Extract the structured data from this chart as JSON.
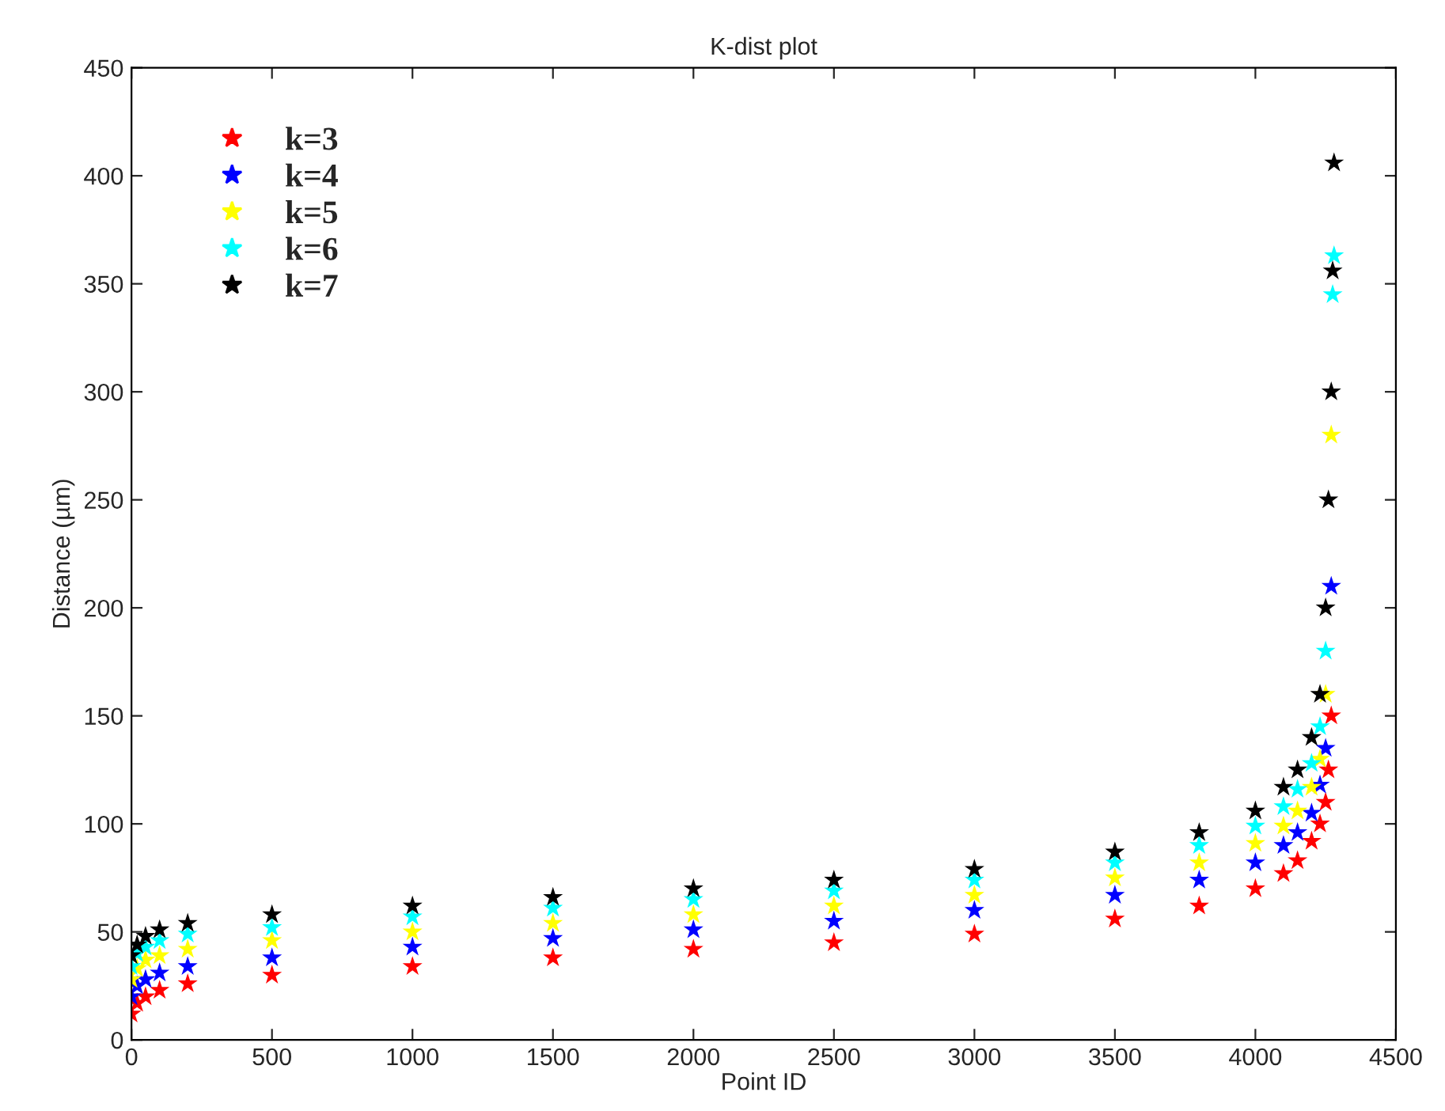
{
  "chart_data": {
    "type": "scatter",
    "title": "K-dist plot",
    "xlabel": "Point ID",
    "ylabel": "Distance (µm)",
    "marker": "star",
    "legend": "top left",
    "grid": false,
    "xlim": [
      0,
      4500
    ],
    "ylim": [
      0,
      450
    ],
    "xticks": [
      0,
      500,
      1000,
      1500,
      2000,
      2500,
      3000,
      3500,
      4000,
      4500
    ],
    "yticks": [
      0,
      50,
      100,
      150,
      200,
      250,
      300,
      350,
      400,
      450
    ],
    "series": [
      {
        "name": "k=3",
        "color": "#ff0000",
        "x": [
          0,
          20,
          50,
          100,
          200,
          500,
          1000,
          1500,
          2000,
          2500,
          3000,
          3500,
          3800,
          4000,
          4100,
          4150,
          4200,
          4230,
          4250,
          4260,
          4270
        ],
        "values": [
          12,
          17,
          20,
          23,
          26,
          30,
          34,
          38,
          42,
          45,
          49,
          56,
          62,
          70,
          77,
          83,
          92,
          100,
          110,
          125,
          150
        ]
      },
      {
        "name": "k=4",
        "color": "#0000ff",
        "x": [
          0,
          20,
          50,
          100,
          200,
          500,
          1000,
          1500,
          2000,
          2500,
          3000,
          3500,
          3800,
          4000,
          4100,
          4150,
          4200,
          4230,
          4250,
          4260,
          4270
        ],
        "values": [
          20,
          25,
          28,
          31,
          34,
          38,
          43,
          47,
          51,
          55,
          60,
          67,
          74,
          82,
          90,
          96,
          105,
          118,
          135,
          null,
          210
        ]
      },
      {
        "name": "k=5",
        "color": "#ffff00",
        "x": [
          0,
          20,
          50,
          100,
          200,
          500,
          1000,
          1500,
          2000,
          2500,
          3000,
          3500,
          3800,
          4000,
          4100,
          4150,
          4200,
          4230,
          4250,
          4260,
          4270
        ],
        "values": [
          28,
          33,
          37,
          39,
          42,
          46,
          50,
          54,
          58,
          62,
          67,
          75,
          82,
          91,
          99,
          106,
          117,
          130,
          160,
          null,
          280
        ]
      },
      {
        "name": "k=6",
        "color": "#00ffff",
        "x": [
          0,
          20,
          50,
          100,
          200,
          500,
          1000,
          1500,
          2000,
          2500,
          3000,
          3500,
          3800,
          4000,
          4100,
          4150,
          4200,
          4230,
          4250,
          4260,
          4270,
          4275,
          4280
        ],
        "values": [
          34,
          40,
          43,
          46,
          49,
          52,
          57,
          61,
          65,
          69,
          74,
          82,
          90,
          99,
          108,
          116,
          128,
          145,
          180,
          null,
          null,
          345,
          363
        ]
      },
      {
        "name": "k=7",
        "color": "#000000",
        "x": [
          0,
          20,
          50,
          100,
          200,
          500,
          1000,
          1500,
          2000,
          2500,
          3000,
          3500,
          3800,
          4000,
          4100,
          4150,
          4200,
          4230,
          4250,
          4260,
          4270,
          4275,
          4280
        ],
        "values": [
          39,
          44,
          48,
          51,
          54,
          58,
          62,
          66,
          70,
          74,
          79,
          87,
          96,
          106,
          117,
          125,
          140,
          160,
          200,
          250,
          300,
          356,
          406
        ]
      }
    ]
  }
}
